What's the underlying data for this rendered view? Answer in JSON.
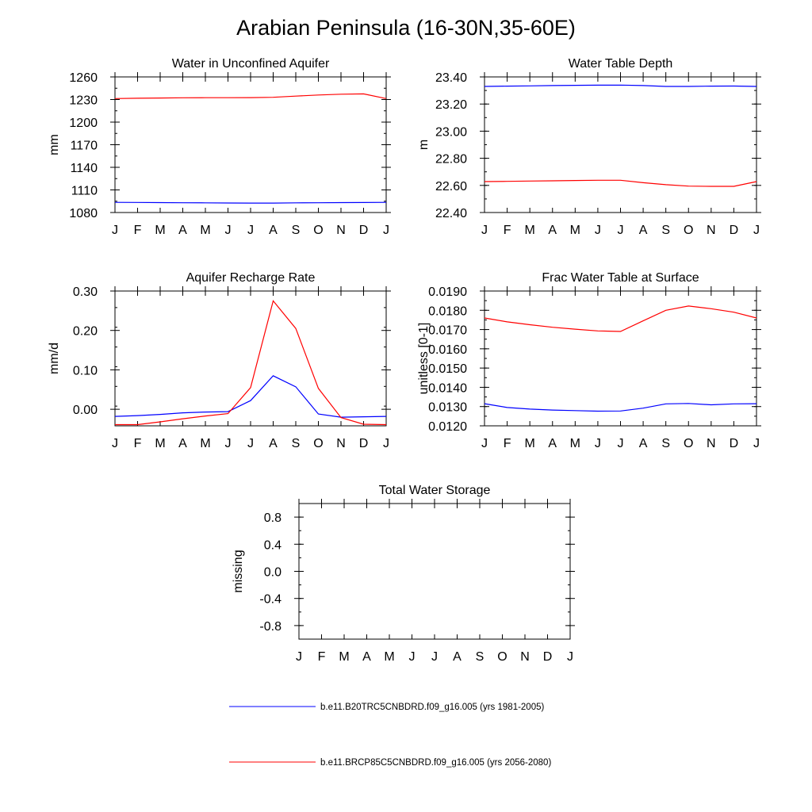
{
  "title": "Arabian Peninsula (16-30N,35-60E)",
  "chart_data": [
    {
      "id": "unconfined",
      "type": "line",
      "title": "Water in Unconfined Aquifer",
      "xlabel": "",
      "ylabel": "mm",
      "categories": [
        "J",
        "F",
        "M",
        "A",
        "M",
        "J",
        "J",
        "A",
        "S",
        "O",
        "N",
        "D",
        "J"
      ],
      "ylim": [
        1080,
        1260
      ],
      "yticks": [
        "1260",
        "1230",
        "1200",
        "1170",
        "1140",
        "1110",
        "1080"
      ],
      "ytick_values": [
        1260,
        1230,
        1200,
        1170,
        1140,
        1110,
        1080
      ],
      "series": [
        {
          "name": "b.e11.B20TRC5CNBDRD.f09_g16.005 (yrs 1981-2005)",
          "color": "#0000ff",
          "values": [
            1093.5,
            1093.4,
            1093.2,
            1093.0,
            1092.8,
            1092.6,
            1092.5,
            1092.5,
            1092.8,
            1093.0,
            1093.2,
            1093.3,
            1093.5
          ]
        },
        {
          "name": "b.e11.BRCP85C5CNBDRD.f09_g16.005 (yrs 2056-2080)",
          "color": "#ff0000",
          "values": [
            1231.3,
            1231.7,
            1232.0,
            1232.3,
            1232.4,
            1232.4,
            1232.5,
            1233.0,
            1234.5,
            1236.0,
            1237.0,
            1237.5,
            1231.3
          ]
        }
      ]
    },
    {
      "id": "depth",
      "type": "line",
      "title": "Water Table Depth",
      "xlabel": "",
      "ylabel": "m",
      "categories": [
        "J",
        "F",
        "M",
        "A",
        "M",
        "J",
        "J",
        "A",
        "S",
        "O",
        "N",
        "D",
        "J"
      ],
      "ylim": [
        22.4,
        23.4
      ],
      "yticks": [
        "23.40",
        "23.20",
        "23.00",
        "22.80",
        "22.60",
        "22.40"
      ],
      "ytick_values": [
        23.4,
        23.2,
        23.0,
        22.8,
        22.6,
        22.4
      ],
      "series": [
        {
          "name": "b.e11.B20TRC5CNBDRD.f09_g16.005 (yrs 1981-2005)",
          "color": "#0000ff",
          "values": [
            23.33,
            23.332,
            23.334,
            23.336,
            23.338,
            23.339,
            23.34,
            23.336,
            23.33,
            23.33,
            23.332,
            23.333,
            23.33
          ]
        },
        {
          "name": "b.e11.BRCP85C5CNBDRD.f09_g16.005 (yrs 2056-2080)",
          "color": "#ff0000",
          "values": [
            22.628,
            22.63,
            22.632,
            22.634,
            22.636,
            22.638,
            22.638,
            22.62,
            22.605,
            22.595,
            22.593,
            22.593,
            22.628
          ]
        }
      ]
    },
    {
      "id": "recharge",
      "type": "line",
      "title": "Aquifer Recharge Rate",
      "xlabel": "",
      "ylabel": "mm/d",
      "categories": [
        "J",
        "F",
        "M",
        "A",
        "M",
        "J",
        "J",
        "A",
        "S",
        "O",
        "N",
        "D",
        "J"
      ],
      "ylim": [
        -0.042,
        0.3
      ],
      "yticks": [
        "0.30",
        "0.20",
        "0.10",
        "0.00"
      ],
      "ytick_values": [
        0.3,
        0.2,
        0.1,
        0.0
      ],
      "series": [
        {
          "name": "b.e11.B20TRC5CNBDRD.f09_g16.005 (yrs 1981-2005)",
          "color": "#0000ff",
          "values": [
            -0.018,
            -0.016,
            -0.013,
            -0.009,
            -0.007,
            -0.006,
            0.022,
            0.085,
            0.057,
            -0.012,
            -0.02,
            -0.019,
            -0.018
          ]
        },
        {
          "name": "b.e11.BRCP85C5CNBDRD.f09_g16.005 (yrs 2056-2080)",
          "color": "#ff0000",
          "values": [
            -0.039,
            -0.039,
            -0.032,
            -0.024,
            -0.017,
            -0.011,
            0.055,
            0.275,
            0.205,
            0.053,
            -0.021,
            -0.038,
            -0.039
          ]
        }
      ]
    },
    {
      "id": "frac",
      "type": "line",
      "title": "Frac Water Table at Surface",
      "xlabel": "",
      "ylabel": "unitless [0-1]",
      "categories": [
        "J",
        "F",
        "M",
        "A",
        "M",
        "J",
        "J",
        "A",
        "S",
        "O",
        "N",
        "D",
        "J"
      ],
      "ylim": [
        0.012,
        0.019
      ],
      "yticks": [
        "0.0190",
        "0.0180",
        "0.0170",
        "0.0160",
        "0.0150",
        "0.0140",
        "0.0130",
        "0.0120"
      ],
      "ytick_values": [
        0.019,
        0.018,
        0.017,
        0.016,
        0.015,
        0.014,
        0.013,
        0.012
      ],
      "series": [
        {
          "name": "b.e11.B20TRC5CNBDRD.f09_g16.005 (yrs 1981-2005)",
          "color": "#0000ff",
          "values": [
            0.01315,
            0.01295,
            0.01287,
            0.01282,
            0.01279,
            0.01276,
            0.01277,
            0.01292,
            0.01314,
            0.01316,
            0.01309,
            0.01314,
            0.01315
          ]
        },
        {
          "name": "b.e11.BRCP85C5CNBDRD.f09_g16.005 (yrs 2056-2080)",
          "color": "#ff0000",
          "values": [
            0.0176,
            0.0174,
            0.01725,
            0.01712,
            0.01702,
            0.01693,
            0.0169,
            0.01745,
            0.018,
            0.01822,
            0.01808,
            0.0179,
            0.0176
          ]
        }
      ]
    },
    {
      "id": "storage",
      "type": "line",
      "title": "Total Water Storage",
      "xlabel": "",
      "ylabel": "missing",
      "categories": [
        "J",
        "F",
        "M",
        "A",
        "M",
        "J",
        "J",
        "A",
        "S",
        "O",
        "N",
        "D",
        "J"
      ],
      "ylim": [
        -1.0,
        1.0
      ],
      "yticks": [
        "0.8",
        "0.4",
        "0.0",
        "-0.4",
        "-0.8"
      ],
      "ytick_values": [
        0.8,
        0.4,
        0.0,
        -0.4,
        -0.8
      ],
      "series": []
    }
  ],
  "legend": [
    {
      "label": "b.e11.B20TRC5CNBDRD.f09_g16.005 (yrs 1981-2005)",
      "color": "#0000ff"
    },
    {
      "label": "b.e11.BRCP85C5CNBDRD.f09_g16.005 (yrs 2056-2080)",
      "color": "#ff0000"
    }
  ]
}
